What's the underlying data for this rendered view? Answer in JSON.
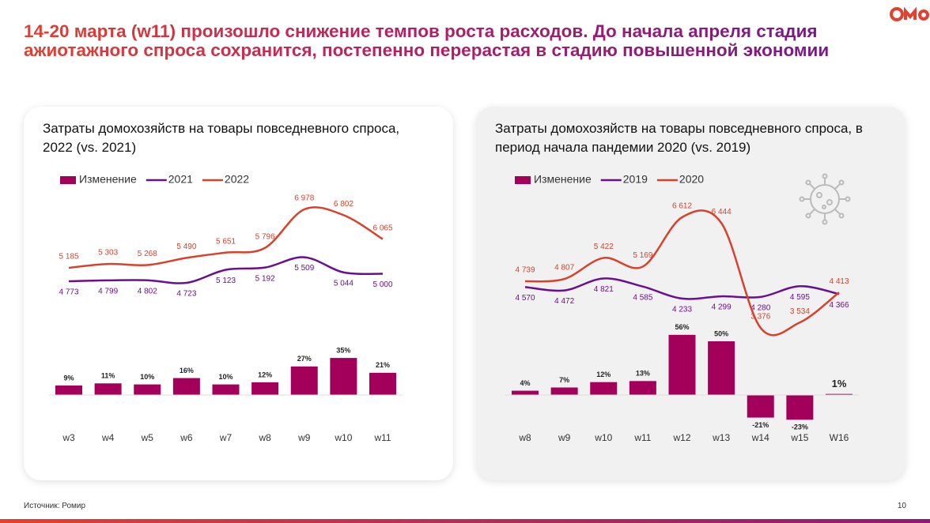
{
  "header": {
    "title": "14-20 марта (w11) произошло снижение темпов роста расходов. До начала апреля стадия ажиотажного спроса сохранится, постепенно перерастая в стадию повышенной экономии"
  },
  "chart_data": [
    {
      "type": "bar-line",
      "title": "Затраты домохозяйств на товары повседневного спроса, 2022 (vs. 2021)",
      "categories": [
        "w3",
        "w4",
        "w5",
        "w6",
        "w7",
        "w8",
        "w9",
        "w10",
        "w11"
      ],
      "series": [
        {
          "name": "Изменение",
          "type": "bar",
          "color": "#a3005b",
          "values": [
            9,
            11,
            10,
            16,
            10,
            12,
            27,
            35,
            21
          ],
          "value_labels": [
            "9%",
            "11%",
            "10%",
            "16%",
            "10%",
            "12%",
            "27%",
            "35%",
            "21%"
          ]
        },
        {
          "name": "2021",
          "type": "line",
          "color": "#6a0f8e",
          "values": [
            4773,
            4799,
            4802,
            4723,
            5123,
            5192,
            5509,
            5044,
            5000
          ],
          "value_labels": [
            "4 773",
            "4 799",
            "4 802",
            "4 723",
            "5 123",
            "5 192",
            "5 509",
            "5 044",
            "5 000"
          ]
        },
        {
          "name": "2022",
          "type": "line",
          "color": "#d9412b",
          "values": [
            5185,
            5303,
            5268,
            5490,
            5651,
            5796,
            6978,
            6802,
            6065
          ],
          "value_labels": [
            "5 185",
            "5 303",
            "5 268",
            "5 490",
            "5 651",
            "5 796",
            "6 978",
            "6 802",
            "6 065"
          ]
        }
      ]
    },
    {
      "type": "bar-line",
      "title": "Затраты домохозяйств на товары повседневного спроса, в период начала пандемии 2020 (vs. 2019)",
      "categories": [
        "w8",
        "w9",
        "w10",
        "w11",
        "w12",
        "w13",
        "w14",
        "w15",
        "W16"
      ],
      "series": [
        {
          "name": "Изменение",
          "type": "bar",
          "color": "#a3005b",
          "values": [
            4,
            7,
            12,
            13,
            56,
            50,
            -21,
            -23,
            1
          ],
          "value_labels": [
            "4%",
            "7%",
            "12%",
            "13%",
            "56%",
            "50%",
            "-21%",
            "-23%",
            "1%"
          ]
        },
        {
          "name": "2019",
          "type": "line",
          "color": "#6a0f8e",
          "values": [
            4570,
            4472,
            4821,
            4585,
            4233,
            4299,
            4280,
            4595,
            4366
          ],
          "value_labels": [
            "4 570",
            "4 472",
            "4 821",
            "4 585",
            "4 233",
            "4 299",
            "4 280",
            "4 595",
            "4 366"
          ]
        },
        {
          "name": "2020",
          "type": "line",
          "color": "#d9412b",
          "values": [
            4739,
            4807,
            5422,
            5169,
            6612,
            6444,
            3376,
            3534,
            4413
          ],
          "value_labels": [
            "4 739",
            "4 807",
            "5 422",
            "5 169",
            "6 612",
            "6 444",
            "3 376",
            "3 534",
            "4 413"
          ]
        }
      ]
    }
  ],
  "footer": {
    "source": "Источник: Ромир",
    "page": "10"
  }
}
